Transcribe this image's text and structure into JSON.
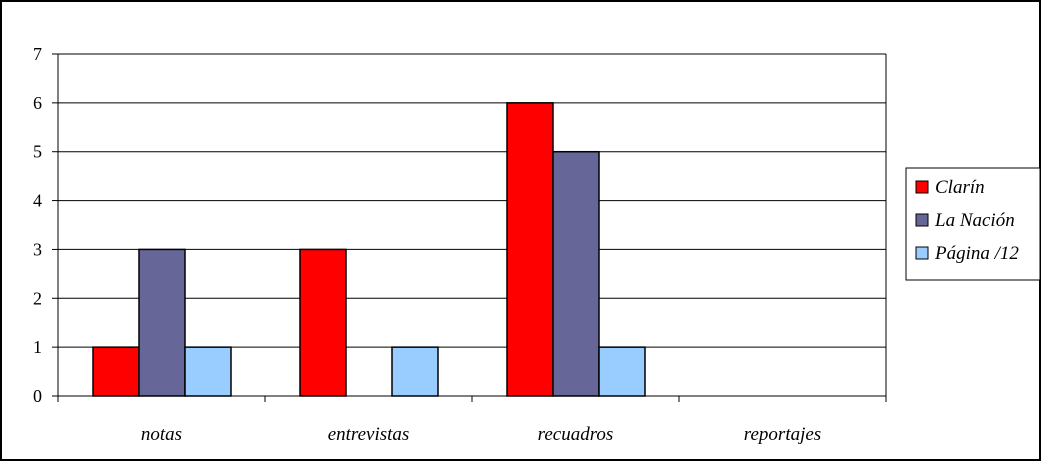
{
  "chart_data": {
    "type": "bar",
    "categories": [
      "notas",
      "entrevistas",
      "recuadros",
      "reportajes"
    ],
    "series": [
      {
        "name": "Clarín",
        "color": "#ff0000",
        "values": [
          1,
          3,
          6,
          0
        ]
      },
      {
        "name": "La Nación",
        "color": "#666699",
        "values": [
          3,
          0,
          5,
          0
        ]
      },
      {
        "name": "Página /12",
        "color": "#99ccff",
        "values": [
          1,
          1,
          1,
          0
        ]
      }
    ],
    "ylim": [
      0,
      7
    ],
    "yticks": [
      "0",
      "1",
      "2",
      "3",
      "4",
      "5",
      "6",
      "7"
    ],
    "grid": true,
    "legend_position": "right"
  }
}
